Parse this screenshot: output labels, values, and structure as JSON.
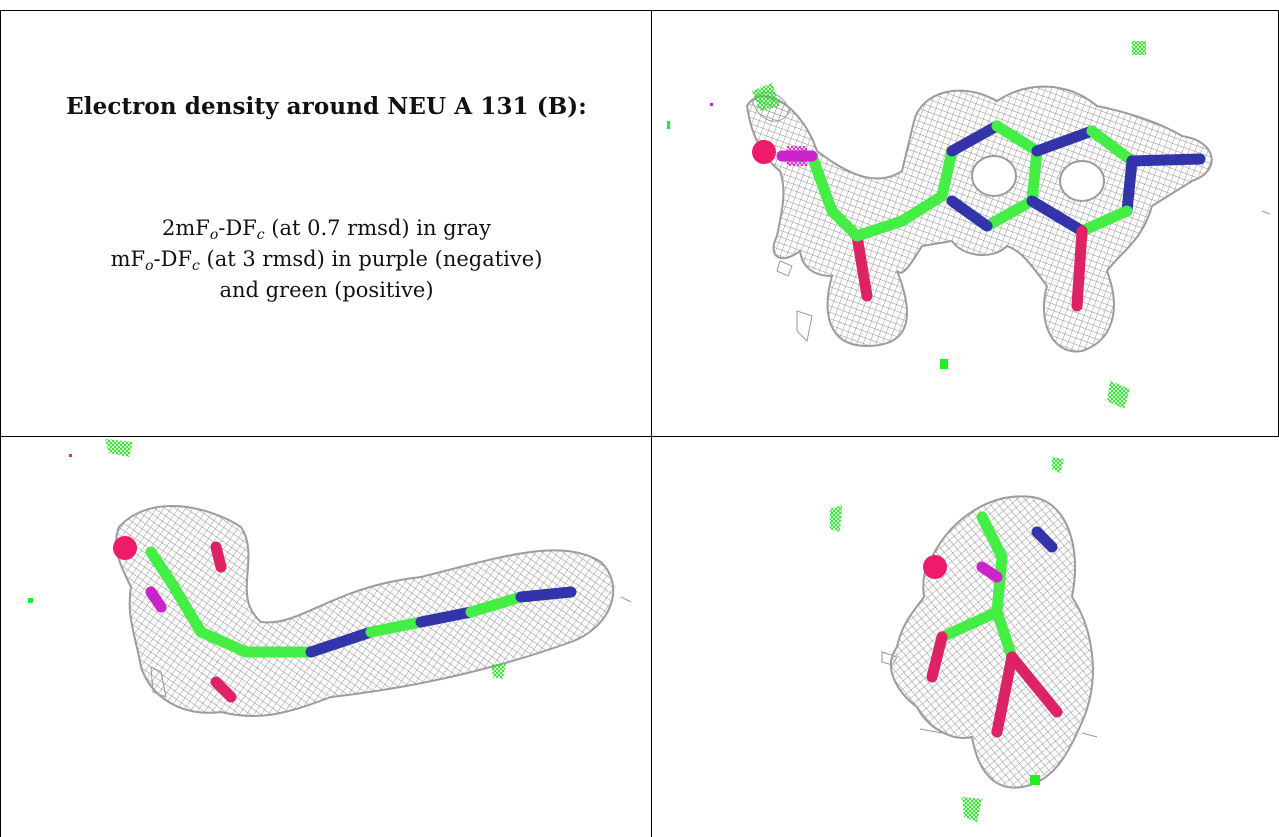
{
  "caption": {
    "title": "Electron density around NEU A 131 (B):",
    "legend_lines": [
      {
        "pre": "2mF",
        "sub1": "o",
        "mid": "-DF",
        "sub2": "c",
        "post": " (at 0.7 rmsd) in gray"
      },
      {
        "pre": "mF",
        "sub1": "o",
        "mid": "-DF",
        "sub2": "c",
        "post": " (at 3 rmsd) in purple (negative)"
      },
      {
        "pre": "and green (positive)",
        "sub1": "",
        "mid": "",
        "sub2": "",
        "post": ""
      }
    ]
  },
  "panels": [
    {
      "name": "view-top-right",
      "orientation": "face-on"
    },
    {
      "name": "view-bottom-left",
      "orientation": "edge-on"
    },
    {
      "name": "view-bottom-right",
      "orientation": "end-on"
    }
  ],
  "colors": {
    "mesh_2fofc": "#9a9a9a",
    "mesh_positive": "#22ee22",
    "mesh_negative": "#cc22cc",
    "carbon": "#44ee44",
    "nitrogen": "#3333aa",
    "oxygen": "#dd2266",
    "sphere": "#ee1a6a"
  }
}
